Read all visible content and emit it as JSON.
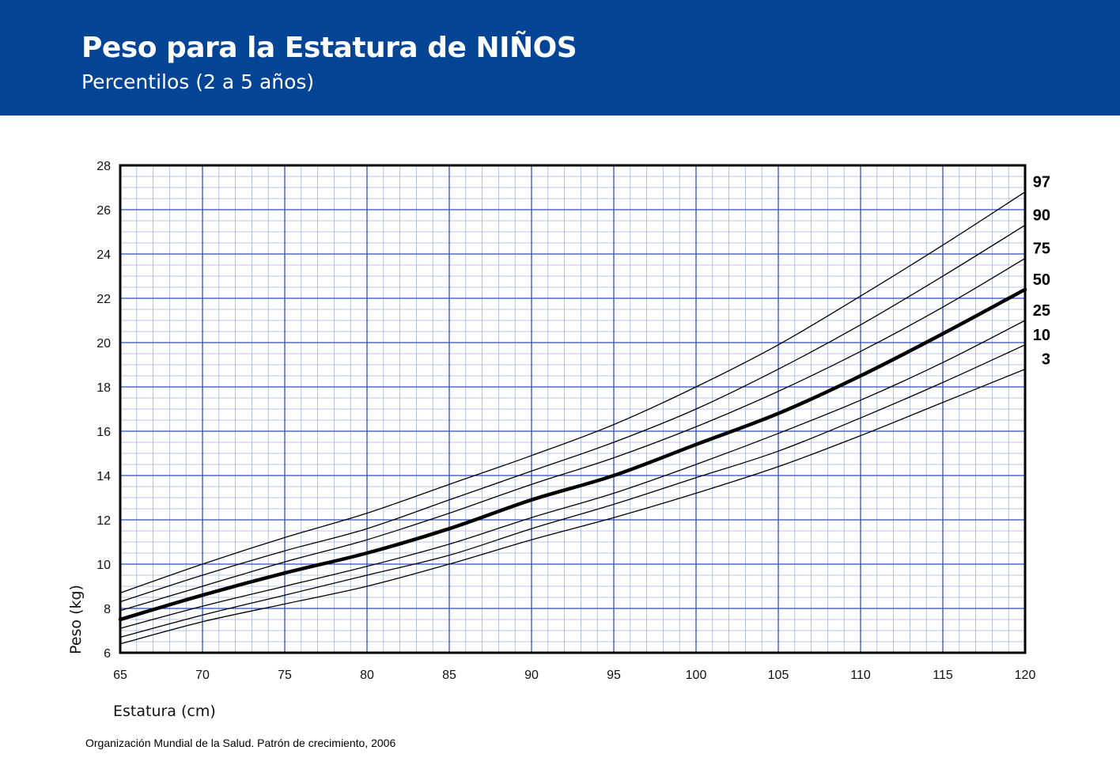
{
  "header": {
    "title": "Peso para la Estatura de NIÑOS",
    "subtitle": "Percentilos (2 a 5 años)"
  },
  "colors": {
    "header_bg": "#034594",
    "major_grid": "#2f4fb3",
    "minor_grid": "#a3b2e0",
    "curves": "#000000"
  },
  "source": "Organización Mundial de la Salud. Patrón de crecimiento, 2006",
  "chart_data": {
    "type": "line",
    "title": "Peso para la Estatura de NIÑOS",
    "subtitle": "Percentilos (2 a 5 años)",
    "xlabel": "Estatura (cm)",
    "ylabel": "Peso (kg)",
    "xlim": [
      65,
      120
    ],
    "ylim": [
      6,
      28
    ],
    "x_ticks": [
      65,
      70,
      75,
      80,
      85,
      90,
      95,
      100,
      105,
      110,
      115,
      120
    ],
    "y_ticks": [
      6,
      8,
      10,
      12,
      14,
      16,
      18,
      20,
      22,
      24,
      26,
      28
    ],
    "grid": true,
    "legend": "curve labels at right end",
    "x": [
      65,
      70,
      75,
      80,
      85,
      90,
      95,
      100,
      105,
      110,
      115,
      120
    ],
    "series": [
      {
        "name": "3",
        "emphasis": false,
        "values": [
          6.4,
          7.4,
          8.2,
          9.0,
          10.0,
          11.1,
          12.1,
          13.2,
          14.4,
          15.8,
          17.3,
          18.8
        ]
      },
      {
        "name": "10",
        "emphasis": false,
        "values": [
          6.7,
          7.7,
          8.6,
          9.5,
          10.4,
          11.6,
          12.7,
          13.9,
          15.1,
          16.6,
          18.2,
          19.9
        ]
      },
      {
        "name": "25",
        "emphasis": false,
        "values": [
          7.1,
          8.1,
          9.0,
          9.9,
          10.9,
          12.1,
          13.2,
          14.5,
          15.9,
          17.4,
          19.1,
          21.0
        ]
      },
      {
        "name": "50",
        "emphasis": true,
        "values": [
          7.5,
          8.6,
          9.6,
          10.5,
          11.6,
          12.9,
          14.0,
          15.4,
          16.8,
          18.5,
          20.4,
          22.4
        ]
      },
      {
        "name": "75",
        "emphasis": false,
        "values": [
          7.9,
          9.0,
          10.1,
          11.1,
          12.3,
          13.6,
          14.8,
          16.2,
          17.8,
          19.6,
          21.6,
          23.8
        ]
      },
      {
        "name": "90",
        "emphasis": false,
        "values": [
          8.3,
          9.5,
          10.6,
          11.6,
          12.9,
          14.2,
          15.5,
          17.0,
          18.8,
          20.8,
          23.0,
          25.3
        ]
      },
      {
        "name": "97",
        "emphasis": false,
        "values": [
          8.7,
          10.0,
          11.2,
          12.3,
          13.6,
          14.9,
          16.3,
          18.0,
          19.9,
          22.1,
          24.4,
          26.8
        ]
      }
    ],
    "curve_label_order": [
      "97",
      "90",
      "75",
      "50",
      "25",
      "10",
      "3"
    ]
  }
}
